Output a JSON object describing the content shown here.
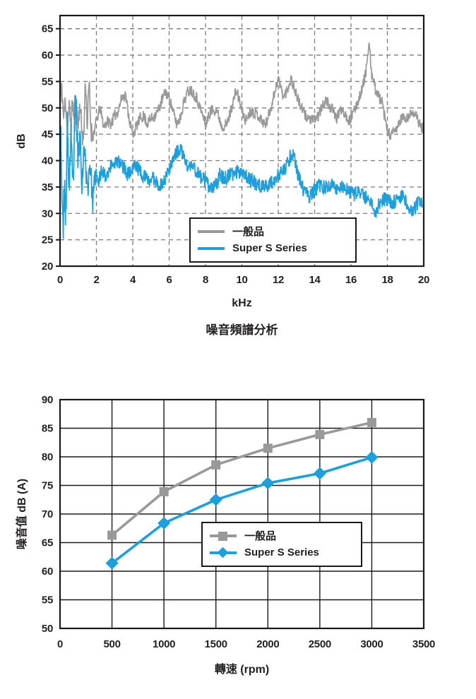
{
  "page": {
    "background": "#ffffff"
  },
  "colors": {
    "standard_gray": "#98999B",
    "super_blue": "#1D9FDD",
    "grid_dashed": "#7B7B7B",
    "grid_solid": "#1a1a1a",
    "axis": "#1a1a1a",
    "text": "#231F20"
  },
  "chart_data": [
    {
      "id": "noise-spectrum",
      "type": "line",
      "title": "噪音頻譜分析",
      "xlabel": "kHz",
      "ylabel": "dB",
      "xlim": [
        0,
        20
      ],
      "ylim": [
        20,
        67.5
      ],
      "xticks": [
        0,
        2,
        4,
        6,
        8,
        10,
        12,
        14,
        16,
        18,
        20
      ],
      "yticks": [
        20,
        25,
        30,
        35,
        40,
        45,
        50,
        55,
        60,
        65
      ],
      "grid": "dashed",
      "legend_position": "bottom-center-inside",
      "series": [
        {
          "name": "一般品",
          "color_key": "standard_gray",
          "seed": 11,
          "clamp": [
            42.8,
            62.2
          ],
          "noise": [
            [
              0,
              1.8,
              2.2
            ],
            [
              1.8,
              20,
              1.1
            ]
          ],
          "anchors": [
            [
              0,
              50
            ],
            [
              0.1,
              54
            ],
            [
              0.2,
              48
            ],
            [
              0.3,
              52
            ],
            [
              0.4,
              46
            ],
            [
              0.5,
              50
            ],
            [
              0.6,
              47
            ],
            [
              0.7,
              51
            ],
            [
              0.8,
              46.5
            ],
            [
              0.9,
              49
            ],
            [
              1.0,
              47
            ],
            [
              1.1,
              51
            ],
            [
              1.2,
              45.5
            ],
            [
              1.3,
              44
            ],
            [
              1.4,
              55.5
            ],
            [
              1.5,
              46.5
            ],
            [
              1.6,
              55
            ],
            [
              1.7,
              46
            ],
            [
              1.8,
              44.5
            ],
            [
              2.0,
              47.5
            ],
            [
              2.2,
              50
            ],
            [
              2.4,
              46.5
            ],
            [
              2.6,
              47.5
            ],
            [
              2.8,
              47
            ],
            [
              3.0,
              48.5
            ],
            [
              3.2,
              49.5
            ],
            [
              3.4,
              52
            ],
            [
              3.6,
              52.5
            ],
            [
              3.8,
              48
            ],
            [
              4.0,
              44.8
            ],
            [
              4.2,
              46.5
            ],
            [
              4.4,
              48
            ],
            [
              4.6,
              48.5
            ],
            [
              4.8,
              47
            ],
            [
              5.0,
              48
            ],
            [
              5.2,
              48.5
            ],
            [
              5.4,
              49.5
            ],
            [
              5.6,
              51.5
            ],
            [
              5.8,
              53
            ],
            [
              6.0,
              52
            ],
            [
              6.2,
              49.5
            ],
            [
              6.4,
              47
            ],
            [
              6.6,
              48
            ],
            [
              6.8,
              51
            ],
            [
              7.0,
              53
            ],
            [
              7.2,
              53.5
            ],
            [
              7.5,
              52
            ],
            [
              7.8,
              49
            ],
            [
              8.0,
              46.8
            ],
            [
              8.3,
              49.5
            ],
            [
              8.6,
              49.8
            ],
            [
              8.9,
              46.5
            ],
            [
              9.2,
              47
            ],
            [
              9.5,
              51
            ],
            [
              9.7,
              53.4
            ],
            [
              10.0,
              49.5
            ],
            [
              10.2,
              47.6
            ],
            [
              10.5,
              49.5
            ],
            [
              10.8,
              49
            ],
            [
              11.0,
              48
            ],
            [
              11.3,
              46.8
            ],
            [
              11.6,
              50
            ],
            [
              11.9,
              54.5
            ],
            [
              12.0,
              55.5
            ],
            [
              12.3,
              52
            ],
            [
              12.5,
              53.5
            ],
            [
              12.7,
              55.6
            ],
            [
              13.0,
              52.5
            ],
            [
              13.2,
              50.5
            ],
            [
              13.5,
              48.5
            ],
            [
              13.9,
              47.5
            ],
            [
              14.2,
              48.5
            ],
            [
              14.6,
              51.5
            ],
            [
              15.0,
              49.5
            ],
            [
              15.2,
              48
            ],
            [
              15.5,
              50
            ],
            [
              15.9,
              47.5
            ],
            [
              16.2,
              49.5
            ],
            [
              16.6,
              53.5
            ],
            [
              16.8,
              56.5
            ],
            [
              17.0,
              62
            ],
            [
              17.15,
              56
            ],
            [
              17.4,
              53
            ],
            [
              17.7,
              51
            ],
            [
              18.0,
              45.5
            ],
            [
              18.2,
              44.7
            ],
            [
              18.5,
              46
            ],
            [
              18.8,
              48.2
            ],
            [
              19.1,
              47.8
            ],
            [
              19.4,
              49.5
            ],
            [
              19.7,
              47.5
            ],
            [
              20.0,
              45.8
            ]
          ]
        },
        {
          "name": "Super S Series",
          "color_key": "super_blue",
          "seed": 23,
          "clamp": [
            24.3,
            52.3
          ],
          "noise": [
            [
              0,
              1.0,
              4.5
            ],
            [
              1.0,
              2.05,
              2.4
            ],
            [
              2.05,
              20,
              1.4
            ]
          ],
          "anchors": [
            [
              0,
              50
            ],
            [
              0.07,
              42
            ],
            [
              0.15,
              24.8
            ],
            [
              0.22,
              36
            ],
            [
              0.3,
              28
            ],
            [
              0.4,
              45
            ],
            [
              0.5,
              36
            ],
            [
              0.6,
              43
            ],
            [
              0.7,
              34
            ],
            [
              0.85,
              52
            ],
            [
              1.0,
              40
            ],
            [
              1.1,
              45.5
            ],
            [
              1.2,
              36
            ],
            [
              1.35,
              43
            ],
            [
              1.5,
              34
            ],
            [
              1.65,
              40
            ],
            [
              1.8,
              32
            ],
            [
              1.95,
              37.5
            ],
            [
              2.1,
              35.5
            ],
            [
              2.3,
              38.5
            ],
            [
              2.5,
              37
            ],
            [
              2.7,
              38.5
            ],
            [
              2.9,
              39.5
            ],
            [
              3.1,
              39.8
            ],
            [
              3.3,
              39.5
            ],
            [
              3.5,
              38.8
            ],
            [
              3.7,
              37.5
            ],
            [
              3.9,
              38
            ],
            [
              4.1,
              39.2
            ],
            [
              4.3,
              38.5
            ],
            [
              4.5,
              37.5
            ],
            [
              4.7,
              36.8
            ],
            [
              4.9,
              36.2
            ],
            [
              5.1,
              36.8
            ],
            [
              5.3,
              36.2
            ],
            [
              5.5,
              35.2
            ],
            [
              5.7,
              36
            ],
            [
              5.9,
              37.5
            ],
            [
              6.1,
              39.5
            ],
            [
              6.3,
              41
            ],
            [
              6.55,
              42
            ],
            [
              6.8,
              41
            ],
            [
              7.0,
              38.8
            ],
            [
              7.3,
              39
            ],
            [
              7.6,
              37.5
            ],
            [
              8.0,
              36
            ],
            [
              8.3,
              34.5
            ],
            [
              8.6,
              35.5
            ],
            [
              8.8,
              37.5
            ],
            [
              9.0,
              36.5
            ],
            [
              9.2,
              37
            ],
            [
              9.5,
              37.5
            ],
            [
              9.8,
              38
            ],
            [
              10.0,
              38.2
            ],
            [
              10.3,
              37
            ],
            [
              10.6,
              36
            ],
            [
              10.9,
              35.5
            ],
            [
              11.2,
              35
            ],
            [
              11.5,
              35.5
            ],
            [
              11.8,
              36.5
            ],
            [
              12.1,
              37.5
            ],
            [
              12.4,
              38.5
            ],
            [
              12.7,
              41
            ],
            [
              12.85,
              41.5
            ],
            [
              13.0,
              38.5
            ],
            [
              13.2,
              36
            ],
            [
              13.45,
              34
            ],
            [
              13.7,
              33.3
            ],
            [
              14.0,
              34.5
            ],
            [
              14.3,
              35.2
            ],
            [
              14.6,
              34.8
            ],
            [
              14.9,
              35.5
            ],
            [
              15.2,
              34.8
            ],
            [
              15.5,
              35.2
            ],
            [
              15.8,
              34.3
            ],
            [
              16.1,
              33.6
            ],
            [
              16.4,
              34
            ],
            [
              16.7,
              33.2
            ],
            [
              17.0,
              32.6
            ],
            [
              17.2,
              31.5
            ],
            [
              17.35,
              30
            ],
            [
              17.6,
              32.3
            ],
            [
              17.9,
              32.8
            ],
            [
              18.2,
              32
            ],
            [
              18.5,
              32.5
            ],
            [
              18.8,
              33.5
            ],
            [
              19.1,
              31.8
            ],
            [
              19.35,
              29.8
            ],
            [
              19.6,
              31.8
            ],
            [
              19.8,
              32.3
            ],
            [
              20.0,
              31.2
            ]
          ]
        }
      ]
    },
    {
      "id": "noise-vs-rpm",
      "type": "line",
      "title": "",
      "xlabel": "轉速 (rpm)",
      "ylabel": "噪音值  dB (A)",
      "xlim": [
        0,
        3500
      ],
      "ylim": [
        50,
        90
      ],
      "xticks": [
        0,
        500,
        1000,
        1500,
        2000,
        2500,
        3000,
        3500
      ],
      "yticks": [
        50,
        55,
        60,
        65,
        70,
        75,
        80,
        85,
        90
      ],
      "grid": "solid",
      "legend_position": "bottom-center-inside",
      "categories": [
        500,
        1000,
        1500,
        2000,
        2500,
        3000
      ],
      "series": [
        {
          "name": "一般品",
          "color_key": "standard_gray",
          "marker": "square",
          "values": [
            66.3,
            73.9,
            78.6,
            81.5,
            83.9,
            86.0
          ]
        },
        {
          "name": "Super S Series",
          "color_key": "super_blue",
          "marker": "diamond",
          "values": [
            61.4,
            68.4,
            72.5,
            75.4,
            77.1,
            79.9
          ]
        }
      ]
    }
  ]
}
